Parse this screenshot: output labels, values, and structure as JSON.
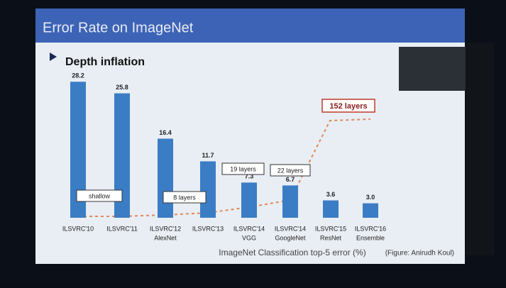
{
  "chart_data": {
    "type": "bar",
    "title": "Error Rate on ImageNet",
    "subtitle": "Depth inflation",
    "categories": [
      "ILSVRC'10",
      "ILSVRC'11",
      "ILSVRC'12",
      "ILSVRC'13",
      "ILSVRC'14",
      "ILSVRC'14",
      "ILSVRC'15",
      "ILSVRC'16"
    ],
    "sublabels": [
      null,
      null,
      "AlexNet",
      null,
      "VGG",
      "GoogleNet",
      "ResNet",
      "Ensemble"
    ],
    "values": [
      28.2,
      25.8,
      16.4,
      11.7,
      7.3,
      6.7,
      3.6,
      3.0
    ],
    "value_labels": [
      "28.2",
      "25.8",
      "16.4",
      "11.7",
      "7.3",
      "6.7",
      "3.6",
      "3.0"
    ],
    "color": "#3b7dc4",
    "ylim": [
      0,
      30
    ],
    "annotations": [
      "shallow",
      "8 layers",
      "19 layers",
      "22 layers",
      "152 layers"
    ],
    "xlabel": "ImageNet Classification top-5 error (%)",
    "source": "(Figure: Anirudh Koul)"
  }
}
